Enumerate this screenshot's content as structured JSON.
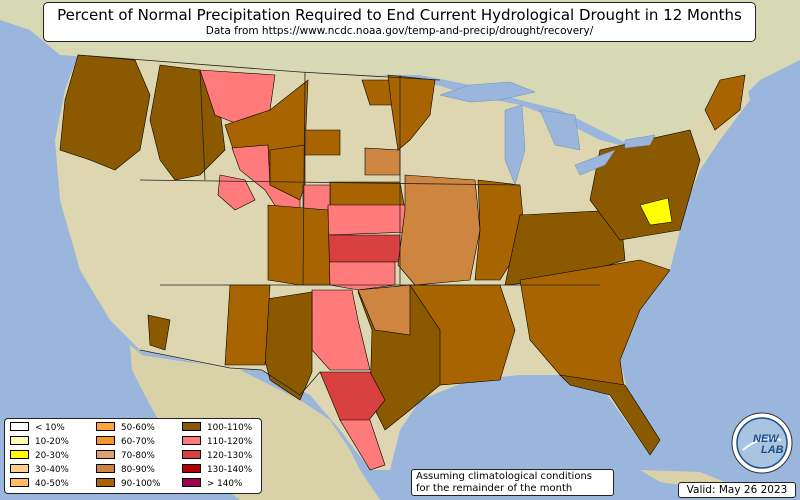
{
  "title": "Percent of Normal Precipitation Required to End Current Hydrological Drought in 12 Months",
  "subtitle": "Data from https://www.ncdc.noaa.gov/temp-and-precip/drought/recovery/",
  "legend": [
    {
      "label": "< 10%",
      "color": "#ffffff"
    },
    {
      "label": "10-20%",
      "color": "#ffffb3"
    },
    {
      "label": "20-30%",
      "color": "#ffff00"
    },
    {
      "label": "30-40%",
      "color": "#ffd08a"
    },
    {
      "label": "40-50%",
      "color": "#ffbb66"
    },
    {
      "label": "50-60%",
      "color": "#ffa33a"
    },
    {
      "label": "60-70%",
      "color": "#f59428"
    },
    {
      "label": "70-80%",
      "color": "#dda070"
    },
    {
      "label": "80-90%",
      "color": "#cd853f"
    },
    {
      "label": "90-100%",
      "color": "#a86400"
    },
    {
      "label": "100-110%",
      "color": "#8b5a00"
    },
    {
      "label": "110-120%",
      "color": "#ff7b7b"
    },
    {
      "label": "120-130%",
      "color": "#d94040"
    },
    {
      "label": "130-140%",
      "color": "#b30000"
    },
    {
      "label": "> 140%",
      "color": "#9e004f"
    }
  ],
  "note": {
    "line1": "Assuming climatological conditions",
    "line2": "for the remainder of the month"
  },
  "valid": "Valid: May 26 2023",
  "logo": {
    "line1": "NEW",
    "line2": "LAB"
  },
  "colors": {
    "ocean": "#9ab6dd",
    "land": "#ddd8b0",
    "lake": "#9ab6dd",
    "c100": "#a86400",
    "c110": "#ff7b7b",
    "c120": "#d94040",
    "c80": "#cd853f",
    "c20": "#ffff00"
  }
}
